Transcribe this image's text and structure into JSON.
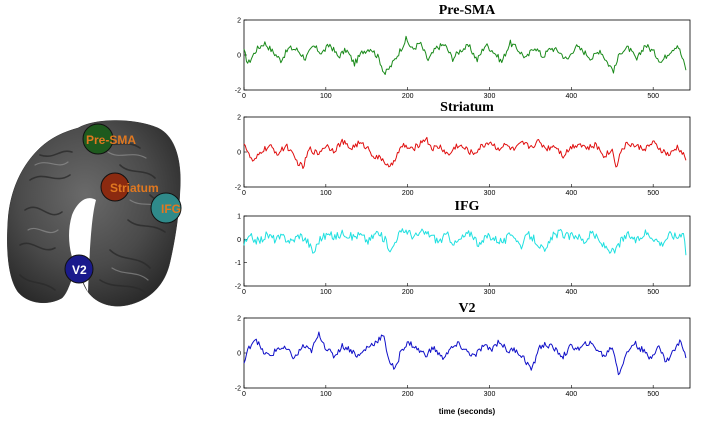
{
  "brain": {
    "rois": [
      {
        "label": "Pre-SMA",
        "color": "#1e5a1e"
      },
      {
        "label": "Striatum",
        "color": "#8b2a10"
      },
      {
        "label": "IFG",
        "color": "#2f8a8a"
      },
      {
        "label": "V2",
        "color": "#1a1a8c"
      }
    ],
    "label_color": "#e07820",
    "label_color_v2": "#ffffff"
  },
  "x_label": "time (seconds)",
  "chart_data": [
    {
      "type": "line",
      "title": "Pre-SMA",
      "color": "#1a8a1a",
      "xlim": [
        0,
        545
      ],
      "ylim": [
        -2,
        2
      ],
      "xticks": [
        0,
        100,
        200,
        300,
        400,
        500
      ],
      "yticks": [
        2,
        0,
        -2
      ],
      "series": [
        {
          "anchors": [
            [
              0,
              0.2
            ],
            [
              5,
              -0.5
            ],
            [
              15,
              0.3
            ],
            [
              25,
              0.7
            ],
            [
              35,
              0.2
            ],
            [
              45,
              -0.3
            ],
            [
              55,
              0.4
            ],
            [
              65,
              0.3
            ],
            [
              75,
              -0.2
            ],
            [
              85,
              0.5
            ],
            [
              95,
              0.1
            ],
            [
              105,
              0.6
            ],
            [
              115,
              -0.1
            ],
            [
              125,
              0.3
            ],
            [
              135,
              -0.5
            ],
            [
              145,
              0.2
            ],
            [
              155,
              0.4
            ],
            [
              165,
              -0.2
            ],
            [
              172,
              -1.1
            ],
            [
              180,
              -0.6
            ],
            [
              190,
              0.2
            ],
            [
              198,
              0.9
            ],
            [
              206,
              0.3
            ],
            [
              215,
              0.7
            ],
            [
              225,
              -0.3
            ],
            [
              235,
              0.4
            ],
            [
              245,
              0.6
            ],
            [
              255,
              -0.2
            ],
            [
              265,
              0.3
            ],
            [
              275,
              0.5
            ],
            [
              285,
              -0.3
            ],
            [
              295,
              0.6
            ],
            [
              305,
              0.2
            ],
            [
              315,
              -0.4
            ],
            [
              325,
              0.7
            ],
            [
              335,
              0.3
            ],
            [
              345,
              -0.2
            ],
            [
              355,
              0.5
            ],
            [
              365,
              -0.1
            ],
            [
              375,
              0.4
            ],
            [
              385,
              0.2
            ],
            [
              395,
              -0.3
            ],
            [
              405,
              0.5
            ],
            [
              415,
              0.2
            ],
            [
              425,
              -0.2
            ],
            [
              435,
              0.3
            ],
            [
              445,
              -0.5
            ],
            [
              452,
              -0.9
            ],
            [
              460,
              0.2
            ],
            [
              470,
              0.4
            ],
            [
              480,
              -0.3
            ],
            [
              490,
              0.6
            ],
            [
              500,
              0.2
            ],
            [
              510,
              -0.4
            ],
            [
              520,
              0.2
            ],
            [
              530,
              0.6
            ],
            [
              540,
              -0.8
            ]
          ]
        }
      ]
    },
    {
      "type": "line",
      "title": "Striatum",
      "color": "#e01010",
      "xlim": [
        0,
        545
      ],
      "ylim": [
        -2,
        2
      ],
      "xticks": [
        0,
        100,
        200,
        300,
        400,
        500
      ],
      "yticks": [
        2,
        0,
        -2
      ],
      "series": [
        {
          "anchors": [
            [
              0,
              0.6
            ],
            [
              6,
              -0.2
            ],
            [
              12,
              -0.6
            ],
            [
              22,
              0.1
            ],
            [
              32,
              0.3
            ],
            [
              42,
              -0.1
            ],
            [
              52,
              0.4
            ],
            [
              62,
              -0.4
            ],
            [
              72,
              -0.9
            ],
            [
              80,
              0.2
            ],
            [
              90,
              -0.1
            ],
            [
              100,
              0.4
            ],
            [
              110,
              0.1
            ],
            [
              120,
              0.6
            ],
            [
              130,
              0.2
            ],
            [
              140,
              0.5
            ],
            [
              150,
              0.3
            ],
            [
              160,
              -0.3
            ],
            [
              170,
              -0.4
            ],
            [
              178,
              -1.0
            ],
            [
              186,
              -0.2
            ],
            [
              195,
              0.4
            ],
            [
              205,
              0.1
            ],
            [
              215,
              0.5
            ],
            [
              222,
              0.8
            ],
            [
              230,
              0.2
            ],
            [
              240,
              0.3
            ],
            [
              250,
              -0.2
            ],
            [
              260,
              0.4
            ],
            [
              270,
              0.2
            ],
            [
              280,
              -0.1
            ],
            [
              290,
              0.3
            ],
            [
              300,
              0.6
            ],
            [
              310,
              0.2
            ],
            [
              320,
              0.4
            ],
            [
              330,
              0.1
            ],
            [
              340,
              0.5
            ],
            [
              350,
              0.3
            ],
            [
              360,
              0.6
            ],
            [
              370,
              0.2
            ],
            [
              380,
              0.4
            ],
            [
              390,
              -0.2
            ],
            [
              400,
              0.3
            ],
            [
              410,
              0.5
            ],
            [
              420,
              0.2
            ],
            [
              430,
              0.4
            ],
            [
              440,
              -0.2
            ],
            [
              450,
              0.1
            ],
            [
              455,
              -0.8
            ],
            [
              462,
              0.2
            ],
            [
              470,
              0.5
            ],
            [
              480,
              0.3
            ],
            [
              490,
              0.2
            ],
            [
              500,
              0.5
            ],
            [
              510,
              0.1
            ],
            [
              520,
              -0.2
            ],
            [
              530,
              0.3
            ],
            [
              540,
              -0.4
            ]
          ]
        }
      ]
    },
    {
      "type": "line",
      "title": "IFG",
      "color": "#20e0e0",
      "xlim": [
        0,
        545
      ],
      "ylim": [
        -2,
        1
      ],
      "xticks": [
        0,
        100,
        200,
        300,
        400,
        500
      ],
      "yticks": [
        1,
        0,
        -1,
        -2
      ],
      "series": [
        {
          "anchors": [
            [
              0,
              -0.2
            ],
            [
              8,
              0.1
            ],
            [
              18,
              -0.1
            ],
            [
              28,
              0.2
            ],
            [
              38,
              0.0
            ],
            [
              48,
              0.1
            ],
            [
              58,
              -0.1
            ],
            [
              68,
              0.2
            ],
            [
              78,
              -0.1
            ],
            [
              85,
              -0.6
            ],
            [
              92,
              0.0
            ],
            [
              102,
              0.2
            ],
            [
              112,
              0.1
            ],
            [
              122,
              0.3
            ],
            [
              132,
              0.1
            ],
            [
              142,
              0.2
            ],
            [
              152,
              -0.1
            ],
            [
              162,
              0.3
            ],
            [
              172,
              0.0
            ],
            [
              180,
              -0.5
            ],
            [
              188,
              0.2
            ],
            [
              198,
              0.4
            ],
            [
              208,
              0.1
            ],
            [
              218,
              0.3
            ],
            [
              228,
              0.2
            ],
            [
              238,
              -0.1
            ],
            [
              248,
              0.2
            ],
            [
              258,
              -0.2
            ],
            [
              268,
              0.1
            ],
            [
              278,
              0.3
            ],
            [
              288,
              -0.3
            ],
            [
              298,
              0.2
            ],
            [
              308,
              0.0
            ],
            [
              318,
              -0.1
            ],
            [
              328,
              0.3
            ],
            [
              338,
              -0.3
            ],
            [
              348,
              0.2
            ],
            [
              358,
              -0.1
            ],
            [
              368,
              -0.6
            ],
            [
              376,
              0.1
            ],
            [
              386,
              0.3
            ],
            [
              396,
              0.1
            ],
            [
              406,
              0.2
            ],
            [
              416,
              -0.1
            ],
            [
              426,
              0.3
            ],
            [
              436,
              -0.2
            ],
            [
              446,
              -0.4
            ],
            [
              452,
              -0.6
            ],
            [
              460,
              -0.1
            ],
            [
              470,
              0.2
            ],
            [
              480,
              -0.1
            ],
            [
              490,
              0.3
            ],
            [
              500,
              0.1
            ],
            [
              510,
              -0.2
            ],
            [
              520,
              0.2
            ],
            [
              530,
              0.1
            ],
            [
              537,
              0.4
            ],
            [
              540,
              -0.6
            ]
          ]
        }
      ]
    },
    {
      "type": "line",
      "title": "V2",
      "color": "#1010c8",
      "xlim": [
        0,
        545
      ],
      "ylim": [
        -2,
        2
      ],
      "xticks": [
        0,
        100,
        200,
        300,
        400,
        500
      ],
      "yticks": [
        2,
        0,
        -2
      ],
      "series": [
        {
          "anchors": [
            [
              0,
              -0.6
            ],
            [
              6,
              0.3
            ],
            [
              14,
              0.9
            ],
            [
              22,
              0.1
            ],
            [
              32,
              -0.2
            ],
            [
              42,
              0.3
            ],
            [
              52,
              0.2
            ],
            [
              62,
              -0.3
            ],
            [
              72,
              0.4
            ],
            [
              82,
              0.1
            ],
            [
              92,
              1.1
            ],
            [
              100,
              0.3
            ],
            [
              110,
              -0.2
            ],
            [
              120,
              0.4
            ],
            [
              130,
              0.2
            ],
            [
              140,
              -0.2
            ],
            [
              150,
              0.3
            ],
            [
              160,
              0.6
            ],
            [
              170,
              1.0
            ],
            [
              178,
              -0.5
            ],
            [
              185,
              -1.0
            ],
            [
              192,
              0.2
            ],
            [
              202,
              0.6
            ],
            [
              212,
              0.2
            ],
            [
              222,
              -0.1
            ],
            [
              232,
              0.3
            ],
            [
              242,
              -0.3
            ],
            [
              252,
              0.2
            ],
            [
              262,
              0.5
            ],
            [
              272,
              0.1
            ],
            [
              282,
              -0.2
            ],
            [
              292,
              0.4
            ],
            [
              302,
              0.2
            ],
            [
              312,
              0.7
            ],
            [
              322,
              0.1
            ],
            [
              332,
              0.2
            ],
            [
              342,
              -0.3
            ],
            [
              352,
              -1.0
            ],
            [
              360,
              0.3
            ],
            [
              370,
              0.5
            ],
            [
              380,
              0.2
            ],
            [
              390,
              -0.2
            ],
            [
              400,
              0.4
            ],
            [
              410,
              0.2
            ],
            [
              420,
              0.6
            ],
            [
              430,
              0.3
            ],
            [
              440,
              -0.2
            ],
            [
              450,
              0.4
            ],
            [
              458,
              -1.2
            ],
            [
              466,
              -0.2
            ],
            [
              476,
              0.6
            ],
            [
              486,
              0.2
            ],
            [
              496,
              -0.3
            ],
            [
              506,
              0.4
            ],
            [
              516,
              -0.5
            ],
            [
              526,
              0.2
            ],
            [
              534,
              0.7
            ],
            [
              540,
              -0.2
            ]
          ]
        }
      ]
    }
  ]
}
